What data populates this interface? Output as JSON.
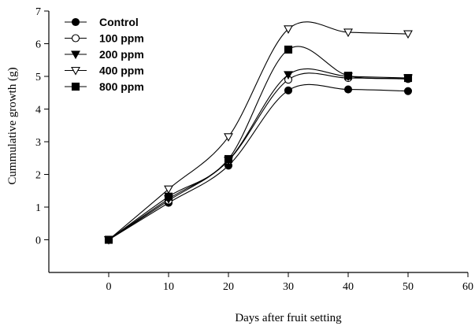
{
  "chart_data": {
    "type": "line",
    "xlabel": "Days after fruit setting",
    "ylabel": "Cummulative growth (g)",
    "xlim": [
      -10,
      60
    ],
    "ylim": [
      -1,
      7
    ],
    "xticks": [
      0,
      10,
      20,
      30,
      40,
      50,
      60
    ],
    "yticks": [
      0,
      1,
      2,
      3,
      4,
      5,
      6,
      7
    ],
    "legend_position": "top-left",
    "grid": false,
    "x": [
      0,
      10,
      20,
      30,
      40,
      50
    ],
    "series": [
      {
        "name": "Control",
        "marker": "circle-filled",
        "values": [
          0,
          1.13,
          2.27,
          4.57,
          4.6,
          4.55
        ]
      },
      {
        "name": "100 ppm",
        "marker": "circle-open",
        "values": [
          0,
          1.2,
          2.42,
          4.9,
          4.95,
          4.92
        ]
      },
      {
        "name": "200 ppm",
        "marker": "triangle-down-filled",
        "values": [
          0,
          1.25,
          2.43,
          5.05,
          5.0,
          4.95
        ]
      },
      {
        "name": "400 ppm",
        "marker": "triangle-down-open",
        "values": [
          0,
          1.55,
          3.15,
          6.45,
          6.35,
          6.3
        ]
      },
      {
        "name": "800 ppm",
        "marker": "square-filled",
        "values": [
          0,
          1.32,
          2.47,
          5.82,
          5.02,
          4.95
        ]
      }
    ]
  }
}
